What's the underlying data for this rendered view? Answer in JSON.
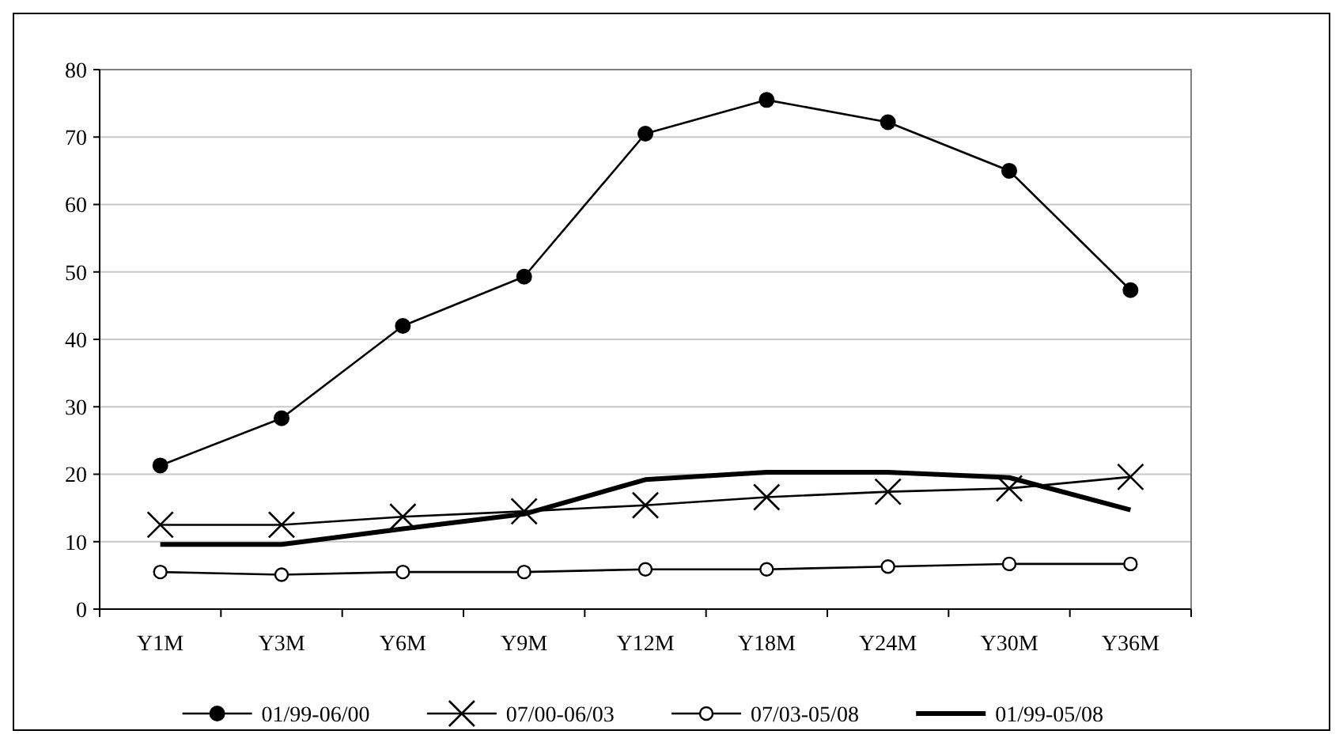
{
  "chart_data": {
    "type": "line",
    "categories": [
      "Y1M",
      "Y3M",
      "Y6M",
      "Y9M",
      "Y12M",
      "Y18M",
      "Y24M",
      "Y30M",
      "Y36M"
    ],
    "ylim": [
      0,
      80
    ],
    "yticks": [
      0,
      10,
      20,
      30,
      40,
      50,
      60,
      70,
      80
    ],
    "grid": "y",
    "legend": "bottom",
    "line_style": "solid",
    "series": [
      {
        "name": "01/99-06/00",
        "color": "#000000",
        "marker": "circle",
        "values": [
          21.3,
          28.3,
          42,
          49.3,
          70.5,
          75.5,
          72.2,
          65,
          47.3
        ]
      },
      {
        "name": "07/00-06/03",
        "color": "#000000",
        "marker": "cross",
        "values": [
          12.5,
          12.5,
          13.7,
          14.5,
          15.4,
          16.6,
          17.4,
          17.9,
          19.6
        ]
      },
      {
        "name": "07/03-05/08",
        "color": "#000000",
        "marker": "circle-open",
        "values": [
          5.5,
          5.1,
          5.5,
          5.5,
          5.9,
          5.9,
          6.3,
          6.7,
          6.7
        ]
      },
      {
        "name": "01/99-05/08",
        "color": "#000000",
        "marker": "none",
        "values": [
          9.6,
          9.6,
          11.9,
          14.1,
          19.2,
          20.3,
          20.3,
          19.5,
          14.7
        ]
      }
    ]
  }
}
